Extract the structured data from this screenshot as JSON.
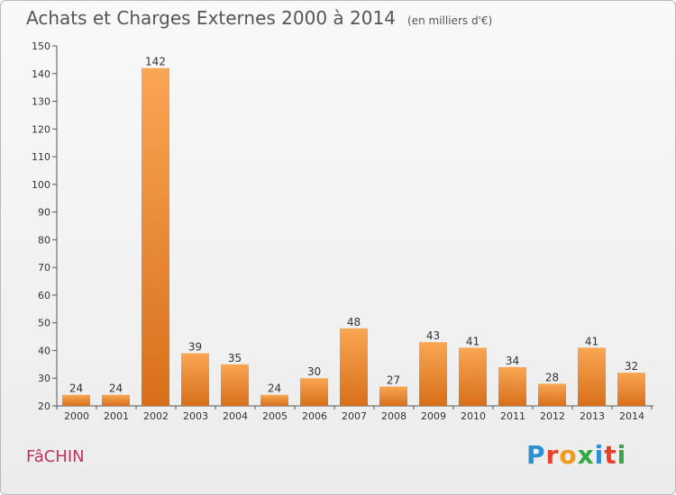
{
  "header": {
    "title": "Achats et Charges Externes 2000 à 2014",
    "unit": "(en milliers d'€)"
  },
  "footer": {
    "commune": "FâCHIN",
    "brand": "Proxiti",
    "brand_colors": [
      "#2a8fd4",
      "#e8412a",
      "#f29a1e",
      "#36a742",
      "#2a8fd4",
      "#e8412a",
      "#36a742"
    ]
  },
  "colors": {
    "bar_top": "#f9a653",
    "bar_bottom": "#d86f1a",
    "axis": "#555555",
    "grid": "#dedede"
  },
  "chart_data": {
    "type": "bar",
    "title": "Achats et Charges Externes 2000 à 2014",
    "subtitle": "(en milliers d'€)",
    "xlabel": "",
    "ylabel": "",
    "categories": [
      "2000",
      "2001",
      "2002",
      "2003",
      "2004",
      "2005",
      "2006",
      "2007",
      "2008",
      "2009",
      "2010",
      "2011",
      "2012",
      "2013",
      "2014"
    ],
    "values": [
      24,
      24,
      142,
      39,
      35,
      24,
      30,
      48,
      27,
      43,
      41,
      34,
      28,
      41,
      32
    ],
    "data_labels": [
      "24",
      "24",
      "142",
      "39",
      "35",
      "24",
      "30",
      "48",
      "27",
      "43",
      "41",
      "34",
      "28",
      "41",
      "32"
    ],
    "ylim": [
      20,
      150
    ],
    "yticks": [
      20,
      30,
      40,
      50,
      60,
      70,
      80,
      90,
      100,
      110,
      120,
      130,
      140,
      150
    ],
    "grid": false,
    "legend": "none"
  }
}
